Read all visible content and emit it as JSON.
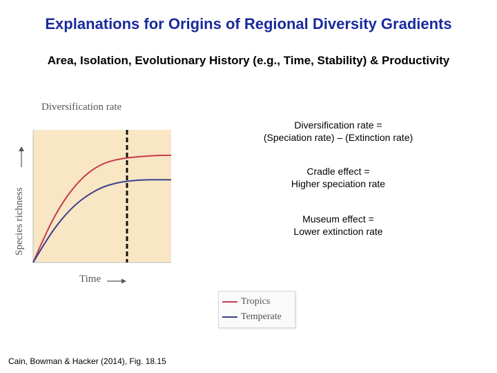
{
  "slide": {
    "title": "Explanations for Origins of Regional Diversity Gradients",
    "subtitle": "Area, Isolation, Evolutionary History (e.g., Time, Stability) & Productivity",
    "citation": "Cain, Bowman & Hacker (2014), Fig. 18.15"
  },
  "notes": {
    "diversification_line1": "Diversification rate =",
    "diversification_line2": "(Speciation rate) – (Extinction rate)",
    "cradle_line1": "Cradle effect =",
    "cradle_line2": "Higher speciation rate",
    "museum_line1": "Museum effect =",
    "museum_line2": "Lower extinction rate"
  },
  "chart_data": {
    "type": "line",
    "title": "Diversification rate",
    "xlabel": "Time",
    "ylabel": "Species richness",
    "grid": false,
    "legend_position": "bottom-right",
    "background_color": "#f9e6c4",
    "series": [
      {
        "name": "Tropics",
        "color": "#c53a4a",
        "x": [
          0,
          0.1,
          0.2,
          0.3,
          0.4,
          0.5,
          0.6,
          0.7,
          0.8,
          0.9,
          1.0
        ],
        "y": [
          0,
          0.3,
          0.54,
          0.72,
          0.85,
          0.93,
          0.97,
          0.99,
          1.0,
          1.01,
          1.01
        ]
      },
      {
        "name": "Temperate",
        "color": "#3a3f8f",
        "x": [
          0,
          0.1,
          0.2,
          0.3,
          0.4,
          0.5,
          0.6,
          0.7,
          0.8,
          0.9,
          1.0
        ],
        "y": [
          0,
          0.22,
          0.4,
          0.54,
          0.64,
          0.71,
          0.75,
          0.77,
          0.78,
          0.78,
          0.78
        ]
      }
    ],
    "reference_line": {
      "x": 0.68,
      "style": "dashed"
    },
    "xlim": [
      0,
      1
    ],
    "ylim": [
      0,
      1.25
    ]
  }
}
